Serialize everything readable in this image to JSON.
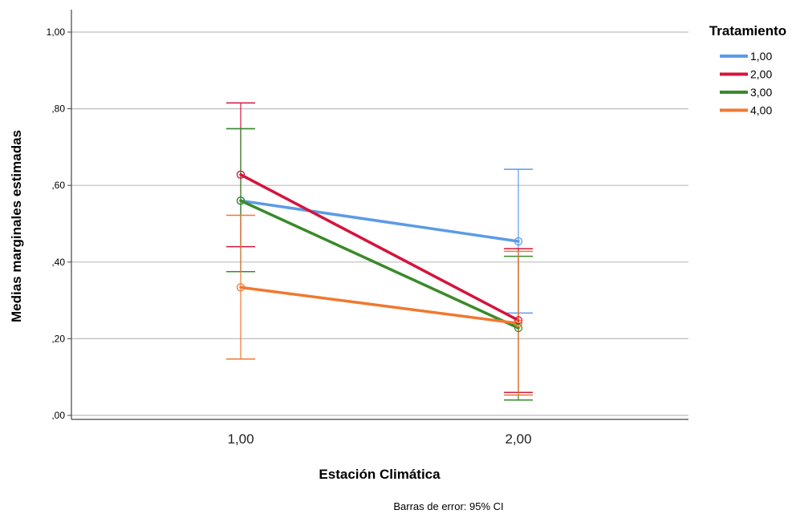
{
  "chart_data": {
    "type": "line",
    "xlabel": "Estación Climática",
    "ylabel": "Medias marginales estimadas",
    "footnote": "Barras de error: 95% CI",
    "categories": [
      "1,00",
      "2,00"
    ],
    "ylim": [
      0,
      1.0
    ],
    "yticks": [
      {
        "value": 0.0,
        "label": ",00"
      },
      {
        "value": 0.2,
        "label": ",20"
      },
      {
        "value": 0.4,
        "label": ",40"
      },
      {
        "value": 0.6,
        "label": ",60"
      },
      {
        "value": 0.8,
        "label": ",80"
      },
      {
        "value": 1.0,
        "label": "1,00"
      }
    ],
    "grid": true,
    "legend": {
      "title": "Tratamiento",
      "placement": "top-right"
    },
    "series": [
      {
        "name": "1,00",
        "color": "#5b9be6",
        "values": [
          0.56,
          0.454
        ],
        "ci_low": [
          0.375,
          0.267
        ],
        "ci_high": [
          0.748,
          0.642
        ]
      },
      {
        "name": "2,00",
        "color": "#d4143c",
        "values": [
          0.628,
          0.248
        ],
        "ci_low": [
          0.44,
          0.06
        ],
        "ci_high": [
          0.815,
          0.435
        ]
      },
      {
        "name": "3,00",
        "color": "#3a8a2a",
        "values": [
          0.56,
          0.228
        ],
        "ci_low": [
          0.375,
          0.04
        ],
        "ci_high": [
          0.748,
          0.415
        ]
      },
      {
        "name": "4,00",
        "color": "#f07830",
        "values": [
          0.334,
          0.24
        ],
        "ci_low": [
          0.147,
          0.053
        ],
        "ci_high": [
          0.522,
          0.428
        ]
      }
    ]
  }
}
